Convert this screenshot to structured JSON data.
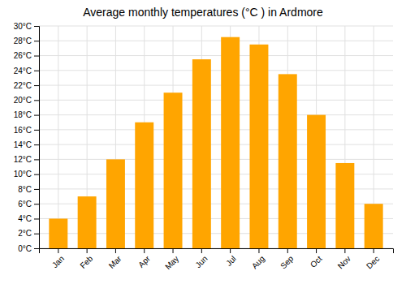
{
  "chart_data": {
    "type": "bar",
    "title": "Average monthly temperatures (°C ) in Ardmore",
    "categories": [
      "Jan",
      "Feb",
      "Mar",
      "Apr",
      "May",
      "Jun",
      "Jul",
      "Aug",
      "Sep",
      "Oct",
      "Nov",
      "Dec"
    ],
    "values": [
      4.0,
      7.0,
      12.0,
      17.0,
      21.0,
      25.5,
      28.5,
      27.5,
      23.5,
      18.0,
      11.5,
      6.0
    ],
    "color": "#FFA500",
    "ylim": [
      0,
      30
    ],
    "yticks": [
      {
        "value": 0,
        "label": "0°C"
      },
      {
        "value": 2,
        "label": "2°C"
      },
      {
        "value": 4,
        "label": "4°C"
      },
      {
        "value": 6,
        "label": "6°C"
      },
      {
        "value": 8,
        "label": "8°C"
      },
      {
        "value": 10,
        "label": "10°C"
      },
      {
        "value": 12,
        "label": "12°C"
      },
      {
        "value": 14,
        "label": "14°C"
      },
      {
        "value": 16,
        "label": "16°C"
      },
      {
        "value": 18,
        "label": "18°C"
      },
      {
        "value": 20,
        "label": "20°C"
      },
      {
        "value": 22,
        "label": "22°C"
      },
      {
        "value": 24,
        "label": "24°C"
      },
      {
        "value": 26,
        "label": "26°C"
      },
      {
        "value": 28,
        "label": "28°C"
      },
      {
        "value": 30,
        "label": "30°C"
      }
    ],
    "grid": true
  }
}
